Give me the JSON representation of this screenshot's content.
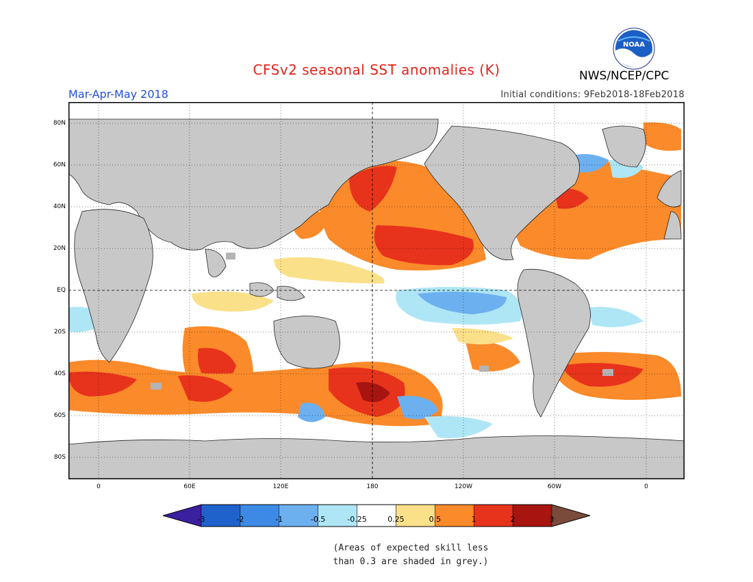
{
  "title": "CFSv2 seasonal SST anomalies (K)",
  "season": "Mar-Apr-May 2018",
  "initial_conditions": "Initial conditions: 9Feb2018-18Feb2018",
  "organization": "NWS/NCEP/CPC",
  "logo_text": "NOAA",
  "lat_labels": [
    "80N",
    "60N",
    "40N",
    "20N",
    "EQ",
    "20S",
    "40S",
    "60S",
    "80S"
  ],
  "lon_labels": [
    "0",
    "60E",
    "120E",
    "180",
    "120W",
    "60W",
    "0"
  ],
  "colorbar": {
    "ticks": [
      "-3",
      "-2",
      "-1",
      "-0.5",
      "-0.25",
      "0.25",
      "0.5",
      "1",
      "2",
      "3"
    ],
    "colors": [
      "#3a1fa0",
      "#1f62cc",
      "#3c8ae6",
      "#6cb0f0",
      "#aee6f5",
      "#ffffff",
      "#fbe08a",
      "#fb8a2a",
      "#e8331c",
      "#a8140f",
      "#7a4a3a"
    ]
  },
  "note_line1": "(Areas of expected skill less",
  "note_line2": "than 0.3 are shaded in grey.)",
  "colors": {
    "land": "#c8c8c8",
    "ocean_neutral": "#ffffff",
    "skill_grey": "#b4b4b4"
  }
}
